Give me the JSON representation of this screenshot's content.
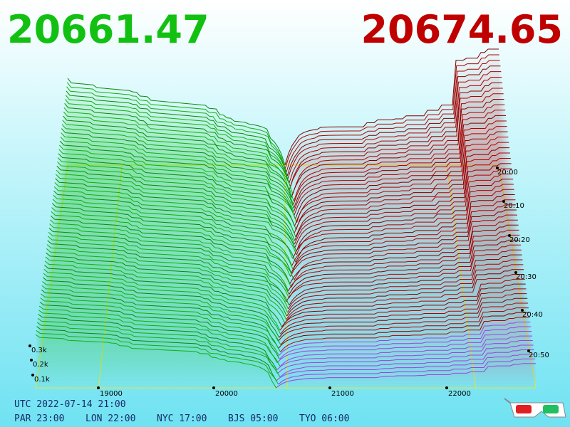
{
  "header": {
    "bid": "20661.47",
    "ask": "20674.65"
  },
  "price_axis": [
    "19000",
    "20000",
    "21000",
    "22000"
  ],
  "depth_axis": [
    "0.3k",
    "0.2k",
    "0.1k"
  ],
  "time_axis": [
    "20:00",
    "20:10",
    "20:20",
    "20:30",
    "20:40",
    "20:50"
  ],
  "footer": {
    "utc": "UTC 2022-07-14 21:00",
    "clocks": [
      "PAR 23:00",
      "LON 22:00",
      "NYC 17:00",
      "BJS 05:00",
      "TYO 06:00"
    ]
  }
}
